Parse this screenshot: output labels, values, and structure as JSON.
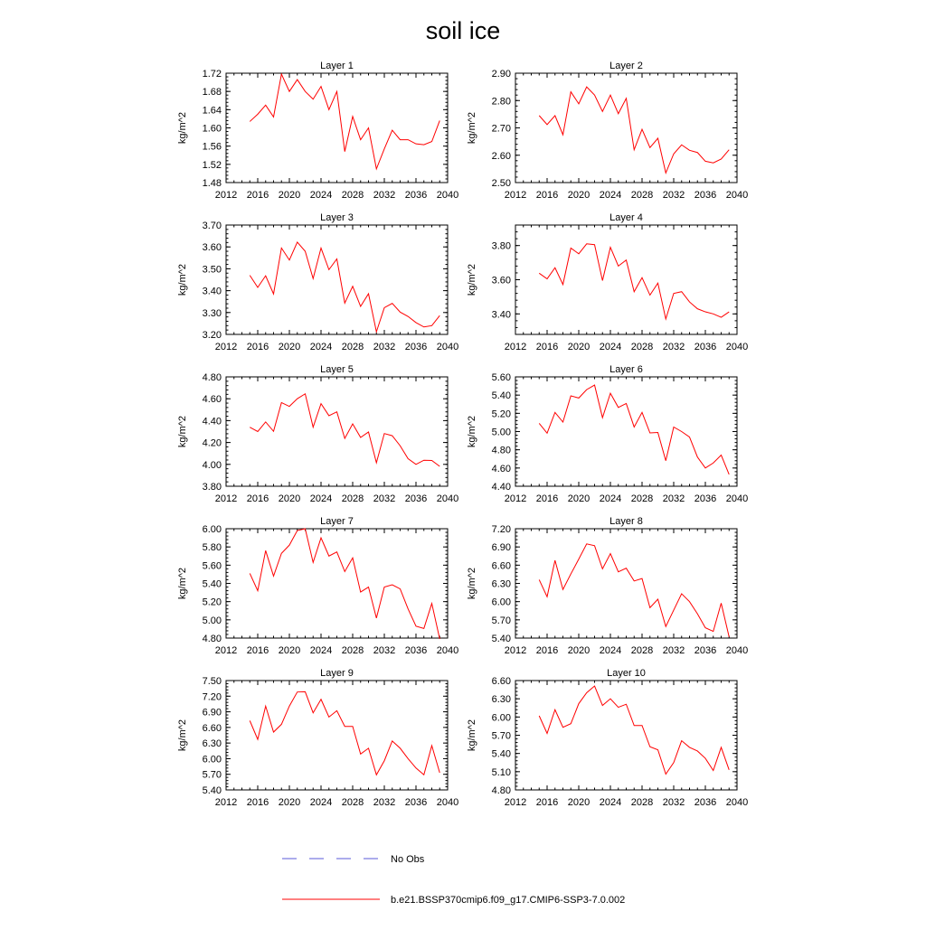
{
  "figure": {
    "title": "soil ice",
    "legend": [
      {
        "label": "No Obs",
        "color": "#5a5ad8",
        "style": "dashed"
      },
      {
        "label": "b.e21.BSSP370cmip6.f09_g17.CMIP6-SSP3-7.0.002",
        "color": "#ff0000",
        "style": "solid"
      }
    ],
    "colors": {
      "series": "#ff0000",
      "obs": "#5a5ad8",
      "axis": "#000000"
    }
  },
  "chart_data": [
    {
      "type": "line",
      "title": "Layer 1",
      "ylabel": "kg/m^2",
      "xlim": [
        2012,
        2040
      ],
      "xticks": [
        "2012",
        "2016",
        "2020",
        "2024",
        "2028",
        "2032",
        "2036",
        "2040"
      ],
      "ylim": [
        1.48,
        1.72
      ],
      "yticks": [
        "1.48",
        "1.52",
        "1.56",
        "1.60",
        "1.64",
        "1.68",
        "1.72"
      ],
      "x": [
        2015,
        2016,
        2017,
        2018,
        2019,
        2020,
        2021,
        2022,
        2023,
        2024,
        2025,
        2026,
        2027,
        2028,
        2029,
        2030,
        2031,
        2032,
        2033,
        2034,
        2035,
        2036,
        2037,
        2038,
        2039
      ],
      "series": [
        {
          "name": "b.e21.BSSP370cmip6.f09_g17.CMIP6-SSP3-7.0.002",
          "values": [
            1.614,
            1.63,
            1.65,
            1.624,
            1.718,
            1.68,
            1.706,
            1.68,
            1.663,
            1.691,
            1.64,
            1.68,
            1.548,
            1.625,
            1.574,
            1.6,
            1.51,
            1.554,
            1.595,
            1.574,
            1.574,
            1.565,
            1.563,
            1.57,
            1.616
          ]
        }
      ]
    },
    {
      "type": "line",
      "title": "Layer 2",
      "ylabel": "kg/m^2",
      "xlim": [
        2012,
        2040
      ],
      "xticks": [
        "2012",
        "2016",
        "2020",
        "2024",
        "2028",
        "2032",
        "2036",
        "2040"
      ],
      "ylim": [
        2.5,
        2.9
      ],
      "yticks": [
        "2.50",
        "2.60",
        "2.70",
        "2.80",
        "2.90"
      ],
      "x": [
        2015,
        2016,
        2017,
        2018,
        2019,
        2020,
        2021,
        2022,
        2023,
        2024,
        2025,
        2026,
        2027,
        2028,
        2029,
        2030,
        2031,
        2032,
        2033,
        2034,
        2035,
        2036,
        2037,
        2038,
        2039
      ],
      "series": [
        {
          "name": "b.e21.BSSP370cmip6.f09_g17.CMIP6-SSP3-7.0.002",
          "values": [
            2.745,
            2.712,
            2.745,
            2.675,
            2.832,
            2.788,
            2.85,
            2.82,
            2.76,
            2.82,
            2.752,
            2.808,
            2.62,
            2.695,
            2.628,
            2.662,
            2.535,
            2.605,
            2.638,
            2.618,
            2.61,
            2.578,
            2.572,
            2.586,
            2.62
          ]
        }
      ]
    },
    {
      "type": "line",
      "title": "Layer 3",
      "ylabel": "kg/m^2",
      "xlim": [
        2012,
        2040
      ],
      "xticks": [
        "2012",
        "2016",
        "2020",
        "2024",
        "2028",
        "2032",
        "2036",
        "2040"
      ],
      "ylim": [
        3.2,
        3.7
      ],
      "yticks": [
        "3.20",
        "3.30",
        "3.40",
        "3.50",
        "3.60",
        "3.70"
      ],
      "x": [
        2015,
        2016,
        2017,
        2018,
        2019,
        2020,
        2021,
        2022,
        2023,
        2024,
        2025,
        2026,
        2027,
        2028,
        2029,
        2030,
        2031,
        2032,
        2033,
        2034,
        2035,
        2036,
        2037,
        2038,
        2039
      ],
      "series": [
        {
          "name": "b.e21.BSSP370cmip6.f09_g17.CMIP6-SSP3-7.0.002",
          "values": [
            3.47,
            3.415,
            3.468,
            3.385,
            3.595,
            3.54,
            3.622,
            3.58,
            3.455,
            3.595,
            3.496,
            3.545,
            3.343,
            3.42,
            3.328,
            3.386,
            3.212,
            3.322,
            3.342,
            3.302,
            3.282,
            3.254,
            3.234,
            3.24,
            3.286
          ]
        }
      ]
    },
    {
      "type": "line",
      "title": "Layer 4",
      "ylabel": "kg/m^2",
      "xlim": [
        2012,
        2040
      ],
      "xticks": [
        "2012",
        "2016",
        "2020",
        "2024",
        "2028",
        "2032",
        "2036",
        "2040"
      ],
      "ylim": [
        3.28,
        3.92
      ],
      "yticks": [
        "3.40",
        "3.60",
        "3.80"
      ],
      "x": [
        2015,
        2016,
        2017,
        2018,
        2019,
        2020,
        2021,
        2022,
        2023,
        2024,
        2025,
        2026,
        2027,
        2028,
        2029,
        2030,
        2031,
        2032,
        2033,
        2034,
        2035,
        2036,
        2037,
        2038,
        2039
      ],
      "series": [
        {
          "name": "b.e21.BSSP370cmip6.f09_g17.CMIP6-SSP3-7.0.002",
          "values": [
            3.638,
            3.605,
            3.67,
            3.572,
            3.785,
            3.752,
            3.81,
            3.805,
            3.595,
            3.79,
            3.68,
            3.715,
            3.53,
            3.612,
            3.51,
            3.58,
            3.37,
            3.52,
            3.53,
            3.47,
            3.43,
            3.412,
            3.4,
            3.38,
            3.412
          ]
        }
      ]
    },
    {
      "type": "line",
      "title": "Layer 5",
      "ylabel": "kg/m^2",
      "xlim": [
        2012,
        2040
      ],
      "xticks": [
        "2012",
        "2016",
        "2020",
        "2024",
        "2028",
        "2032",
        "2036",
        "2040"
      ],
      "ylim": [
        3.8,
        4.8
      ],
      "yticks": [
        "3.80",
        "4.00",
        "4.20",
        "4.40",
        "4.60",
        "4.80"
      ],
      "x": [
        2015,
        2016,
        2017,
        2018,
        2019,
        2020,
        2021,
        2022,
        2023,
        2024,
        2025,
        2026,
        2027,
        2028,
        2029,
        2030,
        2031,
        2032,
        2033,
        2034,
        2035,
        2036,
        2037,
        2038,
        2039
      ],
      "series": [
        {
          "name": "b.e21.BSSP370cmip6.f09_g17.CMIP6-SSP3-7.0.002",
          "values": [
            4.34,
            4.3,
            4.388,
            4.302,
            4.565,
            4.53,
            4.6,
            4.645,
            4.34,
            4.555,
            4.445,
            4.48,
            4.237,
            4.37,
            4.246,
            4.296,
            4.015,
            4.282,
            4.262,
            4.17,
            4.052,
            4.0,
            4.038,
            4.036,
            3.982
          ]
        }
      ]
    },
    {
      "type": "line",
      "title": "Layer 6",
      "ylabel": "kg/m^2",
      "xlim": [
        2012,
        2040
      ],
      "xticks": [
        "2012",
        "2016",
        "2020",
        "2024",
        "2028",
        "2032",
        "2036",
        "2040"
      ],
      "ylim": [
        4.4,
        5.6
      ],
      "yticks": [
        "4.40",
        "4.60",
        "4.80",
        "5.00",
        "5.20",
        "5.40",
        "5.60"
      ],
      "x": [
        2015,
        2016,
        2017,
        2018,
        2019,
        2020,
        2021,
        2022,
        2023,
        2024,
        2025,
        2026,
        2027,
        2028,
        2029,
        2030,
        2031,
        2032,
        2033,
        2034,
        2035,
        2036,
        2037,
        2038,
        2039
      ],
      "series": [
        {
          "name": "b.e21.BSSP370cmip6.f09_g17.CMIP6-SSP3-7.0.002",
          "values": [
            5.09,
            4.982,
            5.21,
            5.104,
            5.392,
            5.368,
            5.46,
            5.51,
            5.152,
            5.42,
            5.265,
            5.308,
            5.05,
            5.21,
            4.985,
            4.99,
            4.68,
            5.05,
            5.0,
            4.94,
            4.72,
            4.6,
            4.655,
            4.742,
            4.53
          ]
        }
      ]
    },
    {
      "type": "line",
      "title": "Layer 7",
      "ylabel": "kg/m^2",
      "xlim": [
        2012,
        2040
      ],
      "xticks": [
        "2012",
        "2016",
        "2020",
        "2024",
        "2028",
        "2032",
        "2036",
        "2040"
      ],
      "ylim": [
        4.8,
        6.0
      ],
      "yticks": [
        "4.80",
        "5.00",
        "5.20",
        "5.40",
        "5.60",
        "5.80",
        "6.00"
      ],
      "x": [
        2015,
        2016,
        2017,
        2018,
        2019,
        2020,
        2021,
        2022,
        2023,
        2024,
        2025,
        2026,
        2027,
        2028,
        2029,
        2030,
        2031,
        2032,
        2033,
        2034,
        2035,
        2036,
        2037,
        2038,
        2039
      ],
      "series": [
        {
          "name": "b.e21.BSSP370cmip6.f09_g17.CMIP6-SSP3-7.0.002",
          "values": [
            5.51,
            5.32,
            5.76,
            5.48,
            5.73,
            5.82,
            5.98,
            6.0,
            5.63,
            5.9,
            5.7,
            5.745,
            5.53,
            5.68,
            5.305,
            5.36,
            5.02,
            5.36,
            5.385,
            5.34,
            5.12,
            4.93,
            4.905,
            5.18,
            4.79
          ]
        }
      ]
    },
    {
      "type": "line",
      "title": "Layer 8",
      "ylabel": "kg/m^2",
      "xlim": [
        2012,
        2040
      ],
      "xticks": [
        "2012",
        "2016",
        "2020",
        "2024",
        "2028",
        "2032",
        "2036",
        "2040"
      ],
      "ylim": [
        5.4,
        7.2
      ],
      "yticks": [
        "5.40",
        "5.70",
        "6.00",
        "6.30",
        "6.60",
        "6.90",
        "7.20"
      ],
      "x": [
        2015,
        2016,
        2017,
        2018,
        2019,
        2020,
        2021,
        2022,
        2023,
        2024,
        2025,
        2026,
        2027,
        2028,
        2029,
        2030,
        2031,
        2032,
        2033,
        2034,
        2035,
        2036,
        2037,
        2038,
        2039
      ],
      "series": [
        {
          "name": "b.e21.BSSP370cmip6.f09_g17.CMIP6-SSP3-7.0.002",
          "values": [
            6.36,
            6.08,
            6.68,
            6.2,
            6.455,
            6.7,
            6.95,
            6.92,
            6.54,
            6.79,
            6.49,
            6.55,
            6.34,
            6.38,
            5.9,
            6.04,
            5.59,
            5.86,
            6.13,
            6.0,
            5.8,
            5.57,
            5.51,
            5.975,
            5.42
          ]
        }
      ]
    },
    {
      "type": "line",
      "title": "Layer 9",
      "ylabel": "kg/m^2",
      "xlim": [
        2012,
        2040
      ],
      "xticks": [
        "2012",
        "2016",
        "2020",
        "2024",
        "2028",
        "2032",
        "2036",
        "2040"
      ],
      "ylim": [
        5.4,
        7.5
      ],
      "yticks": [
        "5.40",
        "5.70",
        "6.00",
        "6.30",
        "6.60",
        "6.90",
        "7.20",
        "7.50"
      ],
      "x": [
        2015,
        2016,
        2017,
        2018,
        2019,
        2020,
        2021,
        2022,
        2023,
        2024,
        2025,
        2026,
        2027,
        2028,
        2029,
        2030,
        2031,
        2032,
        2033,
        2034,
        2035,
        2036,
        2037,
        2038,
        2039
      ],
      "series": [
        {
          "name": "b.e21.BSSP370cmip6.f09_g17.CMIP6-SSP3-7.0.002",
          "values": [
            6.73,
            6.37,
            7.01,
            6.51,
            6.66,
            7.01,
            7.28,
            7.285,
            6.88,
            7.14,
            6.8,
            6.92,
            6.62,
            6.62,
            6.09,
            6.2,
            5.69,
            5.96,
            6.34,
            6.2,
            6.0,
            5.82,
            5.69,
            6.25,
            5.73
          ]
        }
      ]
    },
    {
      "type": "line",
      "title": "Layer 10",
      "ylabel": "kg/m^2",
      "xlim": [
        2012,
        2040
      ],
      "xticks": [
        "2012",
        "2016",
        "2020",
        "2024",
        "2028",
        "2032",
        "2036",
        "2040"
      ],
      "ylim": [
        4.8,
        6.6
      ],
      "yticks": [
        "4.80",
        "5.10",
        "5.40",
        "5.70",
        "6.00",
        "6.30",
        "6.60"
      ],
      "x": [
        2015,
        2016,
        2017,
        2018,
        2019,
        2020,
        2021,
        2022,
        2023,
        2024,
        2025,
        2026,
        2027,
        2028,
        2029,
        2030,
        2031,
        2032,
        2033,
        2034,
        2035,
        2036,
        2037,
        2038,
        2039
      ],
      "series": [
        {
          "name": "b.e21.BSSP370cmip6.f09_g17.CMIP6-SSP3-7.0.002",
          "values": [
            6.02,
            5.73,
            6.12,
            5.83,
            5.89,
            6.22,
            6.4,
            6.51,
            6.19,
            6.3,
            6.16,
            6.21,
            5.86,
            5.86,
            5.51,
            5.46,
            5.06,
            5.25,
            5.61,
            5.5,
            5.44,
            5.32,
            5.12,
            5.5,
            5.13
          ]
        }
      ]
    }
  ]
}
